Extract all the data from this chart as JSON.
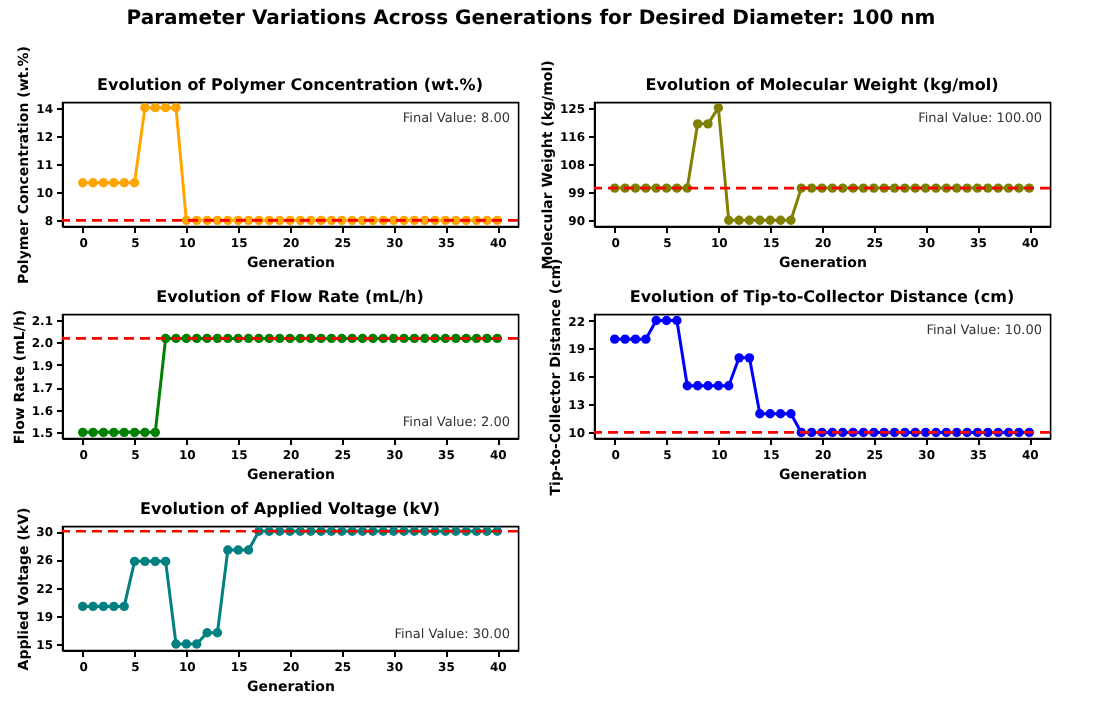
{
  "chart_data": [
    {
      "type": "other",
      "title": "Parameter Variations Across Generations for Desired Diameter: 100 nm"
    },
    {
      "type": "line",
      "title": "Evolution of Polymer Concentration (wt.%)",
      "xlabel": "Generation",
      "ylabel": "Polymer Concentration (wt.%)",
      "marker": "circle",
      "grid": false,
      "x": [
        0,
        1,
        2,
        3,
        4,
        5,
        6,
        7,
        8,
        9,
        10,
        11,
        12,
        13,
        14,
        15,
        16,
        17,
        18,
        19,
        20,
        21,
        22,
        23,
        24,
        25,
        26,
        27,
        28,
        29,
        30,
        31,
        32,
        33,
        34,
        35,
        36,
        37,
        38,
        39,
        40
      ],
      "series": [
        {
          "color": "#ffa500",
          "values": [
            10,
            10,
            10,
            10,
            10,
            10,
            14,
            14,
            14,
            14,
            8,
            8,
            8,
            8,
            8,
            8,
            8,
            8,
            8,
            8,
            8,
            8,
            8,
            8,
            8,
            8,
            8,
            8,
            8,
            8,
            8,
            8,
            8,
            8,
            8,
            8,
            8,
            8,
            8,
            8,
            8
          ]
        }
      ],
      "xlim": [
        -2,
        42
      ],
      "xticks": [
        0,
        5,
        10,
        15,
        20,
        25,
        30,
        35,
        40
      ],
      "ylim": [
        7.7,
        14.3
      ],
      "yticks": [
        8,
        {
          "value": 9.5,
          "label": "10"
        },
        11,
        {
          "value": 12.5,
          "label": "12"
        },
        14
      ],
      "ref_lines": [
        {
          "axis": "y",
          "value": 8,
          "color": "#ff0000",
          "line_style": "dashed"
        }
      ],
      "annotations": [
        "Final Value: 8.00"
      ]
    },
    {
      "type": "line",
      "title": "Evolution of Molecular Weight (kg/mol)",
      "xlabel": "Generation",
      "ylabel": "Molecular Weight (kg/mol)",
      "marker": "circle",
      "grid": false,
      "x": [
        0,
        1,
        2,
        3,
        4,
        5,
        6,
        7,
        8,
        9,
        10,
        11,
        12,
        13,
        14,
        15,
        16,
        17,
        18,
        19,
        20,
        21,
        22,
        23,
        24,
        25,
        26,
        27,
        28,
        29,
        30,
        31,
        32,
        33,
        34,
        35,
        36,
        37,
        38,
        39,
        40
      ],
      "series": [
        {
          "color": "#808000",
          "values": [
            100,
            100,
            100,
            100,
            100,
            100,
            100,
            100,
            120,
            120,
            125,
            90,
            90,
            90,
            90,
            90,
            90,
            90,
            100,
            100,
            100,
            100,
            100,
            100,
            100,
            100,
            100,
            100,
            100,
            100,
            100,
            100,
            100,
            100,
            100,
            100,
            100,
            100,
            100,
            100,
            100
          ]
        }
      ],
      "xlim": [
        -2,
        42
      ],
      "xticks": [
        0,
        5,
        10,
        15,
        20,
        25,
        30,
        35,
        40
      ],
      "ylim": [
        88.2,
        126.8
      ],
      "yticks": [
        90,
        {
          "value": 98.75,
          "label": "99"
        },
        {
          "value": 107.5,
          "label": "108"
        },
        {
          "value": 116.25,
          "label": "116"
        },
        125
      ],
      "ref_lines": [
        {
          "axis": "y",
          "value": 100,
          "color": "#ff0000",
          "line_style": "dashed"
        }
      ],
      "annotations": [
        "Final Value: 100.00"
      ]
    },
    {
      "type": "line",
      "title": "Evolution of Flow Rate (mL/h)",
      "xlabel": "Generation",
      "ylabel": "Flow Rate (mL/h)",
      "marker": "circle",
      "grid": false,
      "x": [
        0,
        1,
        2,
        3,
        4,
        5,
        6,
        7,
        8,
        9,
        10,
        11,
        12,
        13,
        14,
        15,
        16,
        17,
        18,
        19,
        20,
        21,
        22,
        23,
        24,
        25,
        26,
        27,
        28,
        29,
        30,
        31,
        32,
        33,
        34,
        35,
        36,
        37,
        38,
        39,
        40
      ],
      "series": [
        {
          "color": "#008000",
          "values": [
            1.5,
            1.5,
            1.5,
            1.5,
            1.5,
            1.5,
            1.5,
            1.5,
            2.0,
            2.0,
            2.0,
            2.0,
            2.0,
            2.0,
            2.0,
            2.0,
            2.0,
            2.0,
            2.0,
            2.0,
            2.0,
            2.0,
            2.0,
            2.0,
            2.0,
            2.0,
            2.0,
            2.0,
            2.0,
            2.0,
            2.0,
            2.0,
            2.0,
            2.0,
            2.0,
            2.0,
            2.0,
            2.0,
            2.0,
            2.0,
            2.0
          ]
        }
      ],
      "xlim": [
        -2,
        42
      ],
      "xticks": [
        0,
        5,
        10,
        15,
        20,
        25,
        30,
        35,
        40
      ],
      "ylim": [
        1.47,
        2.13
      ],
      "yticks": [
        1.5,
        {
          "value": 1.62,
          "label": "1.6"
        },
        {
          "value": 1.74,
          "label": "1.7"
        },
        {
          "value": 1.86,
          "label": "1.9"
        },
        {
          "value": 1.98,
          "label": "2.0"
        },
        2.1
      ],
      "ref_lines": [
        {
          "axis": "y",
          "value": 2.0,
          "color": "#ff0000",
          "line_style": "dashed"
        }
      ],
      "annotations": [
        "Final Value: 2.00"
      ]
    },
    {
      "type": "line",
      "title": "Evolution of Tip-to-Collector Distance (cm)",
      "xlabel": "Generation",
      "ylabel": "Tip-to-Collector Distance (cm)",
      "marker": "circle",
      "grid": false,
      "x": [
        0,
        1,
        2,
        3,
        4,
        5,
        6,
        7,
        8,
        9,
        10,
        11,
        12,
        13,
        14,
        15,
        16,
        17,
        18,
        19,
        20,
        21,
        22,
        23,
        24,
        25,
        26,
        27,
        28,
        29,
        30,
        31,
        32,
        33,
        34,
        35,
        36,
        37,
        38,
        39,
        40
      ],
      "series": [
        {
          "color": "#0000ff",
          "values": [
            20,
            20,
            20,
            20,
            22,
            22,
            22,
            15,
            15,
            15,
            15,
            15,
            18,
            18,
            12,
            12,
            12,
            12,
            10,
            10,
            10,
            10,
            10,
            10,
            10,
            10,
            10,
            10,
            10,
            10,
            10,
            10,
            10,
            10,
            10,
            10,
            10,
            10,
            10,
            10,
            10
          ]
        }
      ],
      "xlim": [
        -2,
        42
      ],
      "xticks": [
        0,
        5,
        10,
        15,
        20,
        25,
        30,
        35,
        40
      ],
      "ylim": [
        9.4,
        22.7
      ],
      "yticks": [
        10,
        13,
        16,
        19,
        22
      ],
      "ref_lines": [
        {
          "axis": "y",
          "value": 10,
          "color": "#ff0000",
          "line_style": "dashed"
        }
      ],
      "annotations": [
        "Final Value: 10.00"
      ]
    },
    {
      "type": "line",
      "title": "Evolution of Applied Voltage (kV)",
      "xlabel": "Generation",
      "ylabel": "Applied Voltage (kV)",
      "marker": "circle",
      "grid": false,
      "x": [
        0,
        1,
        2,
        3,
        4,
        5,
        6,
        7,
        8,
        9,
        10,
        11,
        12,
        13,
        14,
        15,
        16,
        17,
        18,
        19,
        20,
        21,
        22,
        23,
        24,
        25,
        26,
        27,
        28,
        29,
        30,
        31,
        32,
        33,
        34,
        35,
        36,
        37,
        38,
        39,
        40
      ],
      "series": [
        {
          "color": "#008080",
          "values": [
            20,
            20,
            20,
            20,
            20,
            26,
            26,
            26,
            26,
            15,
            15,
            15,
            16.5,
            16.5,
            27.5,
            27.5,
            27.5,
            30,
            30,
            30,
            30,
            30,
            30,
            30,
            30,
            30,
            30,
            30,
            30,
            30,
            30,
            30,
            30,
            30,
            30,
            30,
            30,
            30,
            30,
            30,
            30
          ]
        }
      ],
      "xlim": [
        -2,
        42
      ],
      "xticks": [
        0,
        5,
        10,
        15,
        20,
        25,
        30,
        35,
        40
      ],
      "ylim": [
        14.2,
        30.7
      ],
      "yticks": [
        15,
        {
          "value": 18.75,
          "label": "19"
        },
        {
          "value": 22.5,
          "label": "22"
        },
        {
          "value": 26.25,
          "label": "26"
        },
        30
      ],
      "ref_lines": [
        {
          "axis": "y",
          "value": 30,
          "color": "#ff0000",
          "line_style": "dashed"
        }
      ],
      "annotations": [
        "Final Value: 30.00"
      ]
    }
  ]
}
